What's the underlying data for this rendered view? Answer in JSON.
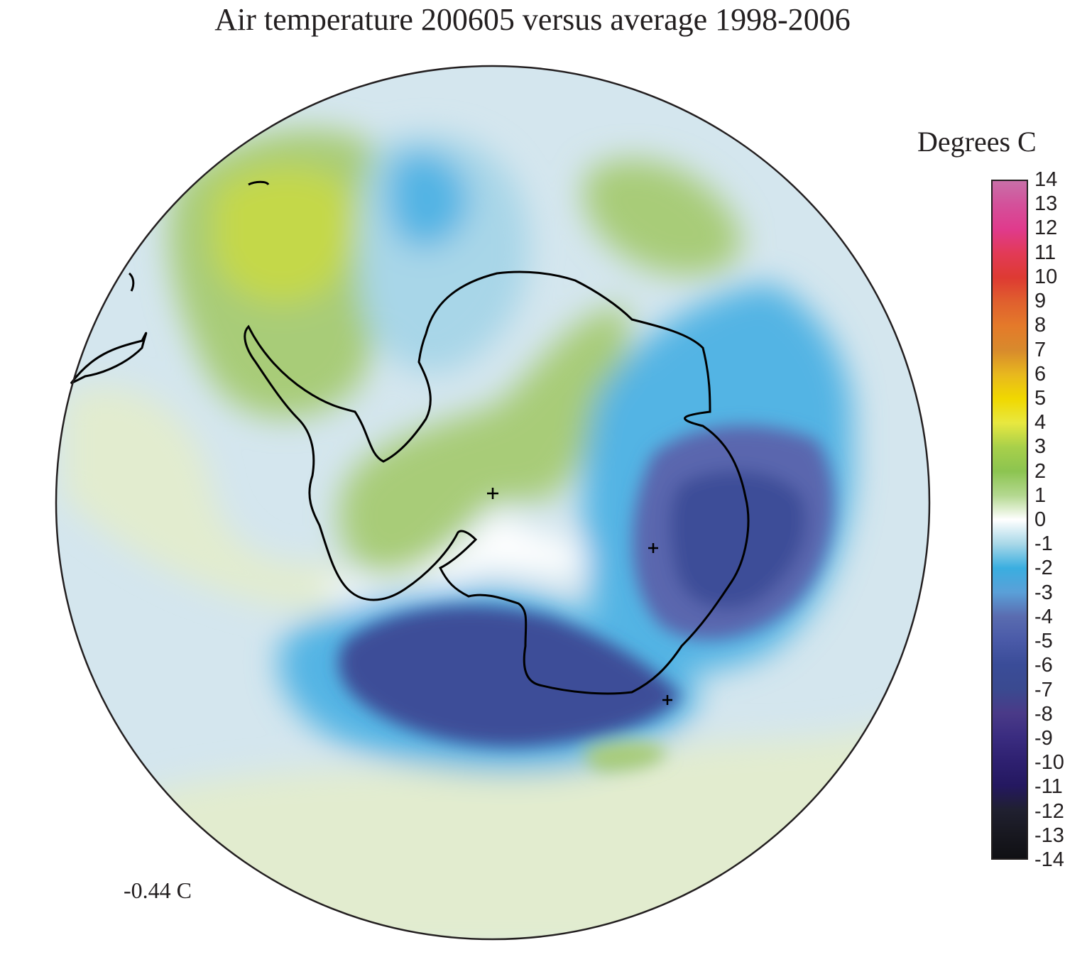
{
  "title": "Air temperature 200605 versus average 1998-2006",
  "unit_label": "Degrees C",
  "mean_label": "-0.44 C",
  "colorbar": {
    "ticks": [
      "14",
      "13",
      "12",
      "11",
      "10",
      "9",
      "8",
      "7",
      "6",
      "5",
      "4",
      "3",
      "2",
      "1",
      "0",
      "-1",
      "-2",
      "-3",
      "-4",
      "-5",
      "-6",
      "-7",
      "-8",
      "-9",
      "-10",
      "-11",
      "-12",
      "-13",
      "-14"
    ],
    "colors": [
      "#c86fa8",
      "#d4509a",
      "#e03a8c",
      "#e23a56",
      "#de3a32",
      "#e0602e",
      "#e47a2a",
      "#d88a2c",
      "#e8b81e",
      "#f0d800",
      "#e8e840",
      "#a8d04a",
      "#8cc450",
      "#b4d890",
      "#ffffff",
      "#a8d8e8",
      "#3aaee0",
      "#5aa0d8",
      "#5a6cb0",
      "#4a5aa8",
      "#3a4c98",
      "#3a4a90",
      "#4a3a88",
      "#3a2c80",
      "#2e2070",
      "#241860",
      "#202030",
      "#181820",
      "#101014"
    ]
  },
  "map": {
    "projection": "south polar stereographic",
    "colors": {
      "background": "#d4e6ee",
      "green_light": "#e2eccf",
      "green_mid": "#a8cc78",
      "green_strong": "#c4d848",
      "yellow": "#e8e840",
      "white": "#ffffff",
      "blue_light": "#a8d6e8",
      "blue_mid": "#52b4e4",
      "purple": "#5a66ae",
      "indigo": "#3c4e98",
      "coast": "#000000"
    }
  }
}
